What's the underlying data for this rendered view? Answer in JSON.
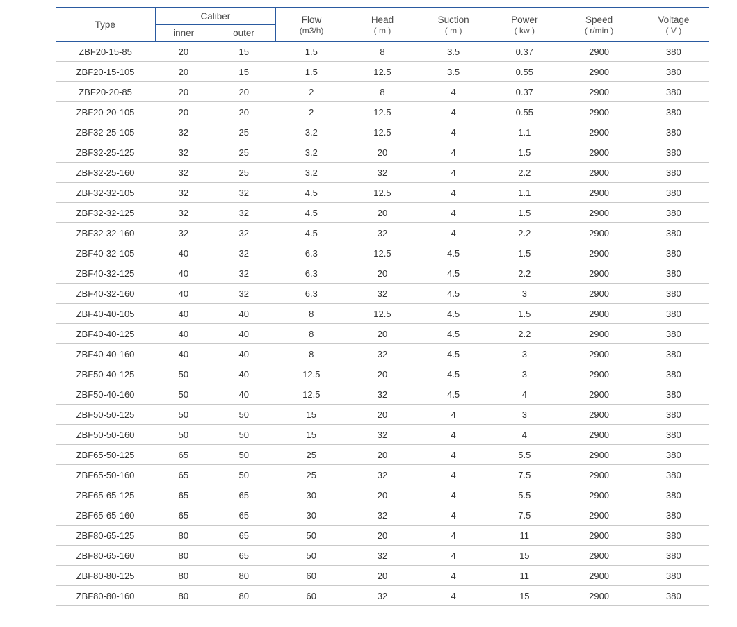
{
  "table": {
    "type": "table",
    "border_color": "#2a5aa0",
    "row_border_color": "#c9c9c9",
    "background_color": "#ffffff",
    "text_color": "#333333",
    "header_fontsize": 13.5,
    "body_fontsize": 13,
    "columns": {
      "type": {
        "label": "Type",
        "unit": ""
      },
      "caliber": {
        "label": "Caliber",
        "inner": "inner",
        "outer": "outer"
      },
      "flow": {
        "label": "Flow",
        "unit": "(m3/h)"
      },
      "head": {
        "label": "Head",
        "unit": "( m )"
      },
      "suction": {
        "label": "Suction",
        "unit": "( m )"
      },
      "power": {
        "label": "Power",
        "unit": "( kw )"
      },
      "speed": {
        "label": "Speed",
        "unit": "( r/min )"
      },
      "voltage": {
        "label": "Voltage",
        "unit": "( V )"
      }
    },
    "rows": [
      {
        "type": "ZBF20-15-85",
        "inner": "20",
        "outer": "15",
        "flow": "1.5",
        "head": "8",
        "suction": "3.5",
        "power": "0.37",
        "speed": "2900",
        "voltage": "380"
      },
      {
        "type": "ZBF20-15-105",
        "inner": "20",
        "outer": "15",
        "flow": "1.5",
        "head": "12.5",
        "suction": "3.5",
        "power": "0.55",
        "speed": "2900",
        "voltage": "380"
      },
      {
        "type": "ZBF20-20-85",
        "inner": "20",
        "outer": "20",
        "flow": "2",
        "head": "8",
        "suction": "4",
        "power": "0.37",
        "speed": "2900",
        "voltage": "380"
      },
      {
        "type": "ZBF20-20-105",
        "inner": "20",
        "outer": "20",
        "flow": "2",
        "head": "12.5",
        "suction": "4",
        "power": "0.55",
        "speed": "2900",
        "voltage": "380"
      },
      {
        "type": "ZBF32-25-105",
        "inner": "32",
        "outer": "25",
        "flow": "3.2",
        "head": "12.5",
        "suction": "4",
        "power": "1.1",
        "speed": "2900",
        "voltage": "380"
      },
      {
        "type": "ZBF32-25-125",
        "inner": "32",
        "outer": "25",
        "flow": "3.2",
        "head": "20",
        "suction": "4",
        "power": "1.5",
        "speed": "2900",
        "voltage": "380"
      },
      {
        "type": "ZBF32-25-160",
        "inner": "32",
        "outer": "25",
        "flow": "3.2",
        "head": "32",
        "suction": "4",
        "power": "2.2",
        "speed": "2900",
        "voltage": "380"
      },
      {
        "type": "ZBF32-32-105",
        "inner": "32",
        "outer": "32",
        "flow": "4.5",
        "head": "12.5",
        "suction": "4",
        "power": "1.1",
        "speed": "2900",
        "voltage": "380"
      },
      {
        "type": "ZBF32-32-125",
        "inner": "32",
        "outer": "32",
        "flow": "4.5",
        "head": "20",
        "suction": "4",
        "power": "1.5",
        "speed": "2900",
        "voltage": "380"
      },
      {
        "type": "ZBF32-32-160",
        "inner": "32",
        "outer": "32",
        "flow": "4.5",
        "head": "32",
        "suction": "4",
        "power": "2.2",
        "speed": "2900",
        "voltage": "380"
      },
      {
        "type": "ZBF40-32-105",
        "inner": "40",
        "outer": "32",
        "flow": "6.3",
        "head": "12.5",
        "suction": "4.5",
        "power": "1.5",
        "speed": "2900",
        "voltage": "380"
      },
      {
        "type": "ZBF40-32-125",
        "inner": "40",
        "outer": "32",
        "flow": "6.3",
        "head": "20",
        "suction": "4.5",
        "power": "2.2",
        "speed": "2900",
        "voltage": "380"
      },
      {
        "type": "ZBF40-32-160",
        "inner": "40",
        "outer": "32",
        "flow": "6.3",
        "head": "32",
        "suction": "4.5",
        "power": "3",
        "speed": "2900",
        "voltage": "380"
      },
      {
        "type": "ZBF40-40-105",
        "inner": "40",
        "outer": "40",
        "flow": "8",
        "head": "12.5",
        "suction": "4.5",
        "power": "1.5",
        "speed": "2900",
        "voltage": "380"
      },
      {
        "type": "ZBF40-40-125",
        "inner": "40",
        "outer": "40",
        "flow": "8",
        "head": "20",
        "suction": "4.5",
        "power": "2.2",
        "speed": "2900",
        "voltage": "380"
      },
      {
        "type": "ZBF40-40-160",
        "inner": "40",
        "outer": "40",
        "flow": "8",
        "head": "32",
        "suction": "4.5",
        "power": "3",
        "speed": "2900",
        "voltage": "380"
      },
      {
        "type": "ZBF50-40-125",
        "inner": "50",
        "outer": "40",
        "flow": "12.5",
        "head": "20",
        "suction": "4.5",
        "power": "3",
        "speed": "2900",
        "voltage": "380"
      },
      {
        "type": "ZBF50-40-160",
        "inner": "50",
        "outer": "40",
        "flow": "12.5",
        "head": "32",
        "suction": "4.5",
        "power": "4",
        "speed": "2900",
        "voltage": "380"
      },
      {
        "type": "ZBF50-50-125",
        "inner": "50",
        "outer": "50",
        "flow": "15",
        "head": "20",
        "suction": "4",
        "power": "3",
        "speed": "2900",
        "voltage": "380"
      },
      {
        "type": "ZBF50-50-160",
        "inner": "50",
        "outer": "50",
        "flow": "15",
        "head": "32",
        "suction": "4",
        "power": "4",
        "speed": "2900",
        "voltage": "380"
      },
      {
        "type": "ZBF65-50-125",
        "inner": "65",
        "outer": "50",
        "flow": "25",
        "head": "20",
        "suction": "4",
        "power": "5.5",
        "speed": "2900",
        "voltage": "380"
      },
      {
        "type": "ZBF65-50-160",
        "inner": "65",
        "outer": "50",
        "flow": "25",
        "head": "32",
        "suction": "4",
        "power": "7.5",
        "speed": "2900",
        "voltage": "380"
      },
      {
        "type": "ZBF65-65-125",
        "inner": "65",
        "outer": "65",
        "flow": "30",
        "head": "20",
        "suction": "4",
        "power": "5.5",
        "speed": "2900",
        "voltage": "380"
      },
      {
        "type": "ZBF65-65-160",
        "inner": "65",
        "outer": "65",
        "flow": "30",
        "head": "32",
        "suction": "4",
        "power": "7.5",
        "speed": "2900",
        "voltage": "380"
      },
      {
        "type": "ZBF80-65-125",
        "inner": "80",
        "outer": "65",
        "flow": "50",
        "head": "20",
        "suction": "4",
        "power": "11",
        "speed": "2900",
        "voltage": "380"
      },
      {
        "type": "ZBF80-65-160",
        "inner": "80",
        "outer": "65",
        "flow": "50",
        "head": "32",
        "suction": "4",
        "power": "15",
        "speed": "2900",
        "voltage": "380"
      },
      {
        "type": "ZBF80-80-125",
        "inner": "80",
        "outer": "80",
        "flow": "60",
        "head": "20",
        "suction": "4",
        "power": "11",
        "speed": "2900",
        "voltage": "380"
      },
      {
        "type": "ZBF80-80-160",
        "inner": "80",
        "outer": "80",
        "flow": "60",
        "head": "32",
        "suction": "4",
        "power": "15",
        "speed": "2900",
        "voltage": "380"
      }
    ]
  }
}
